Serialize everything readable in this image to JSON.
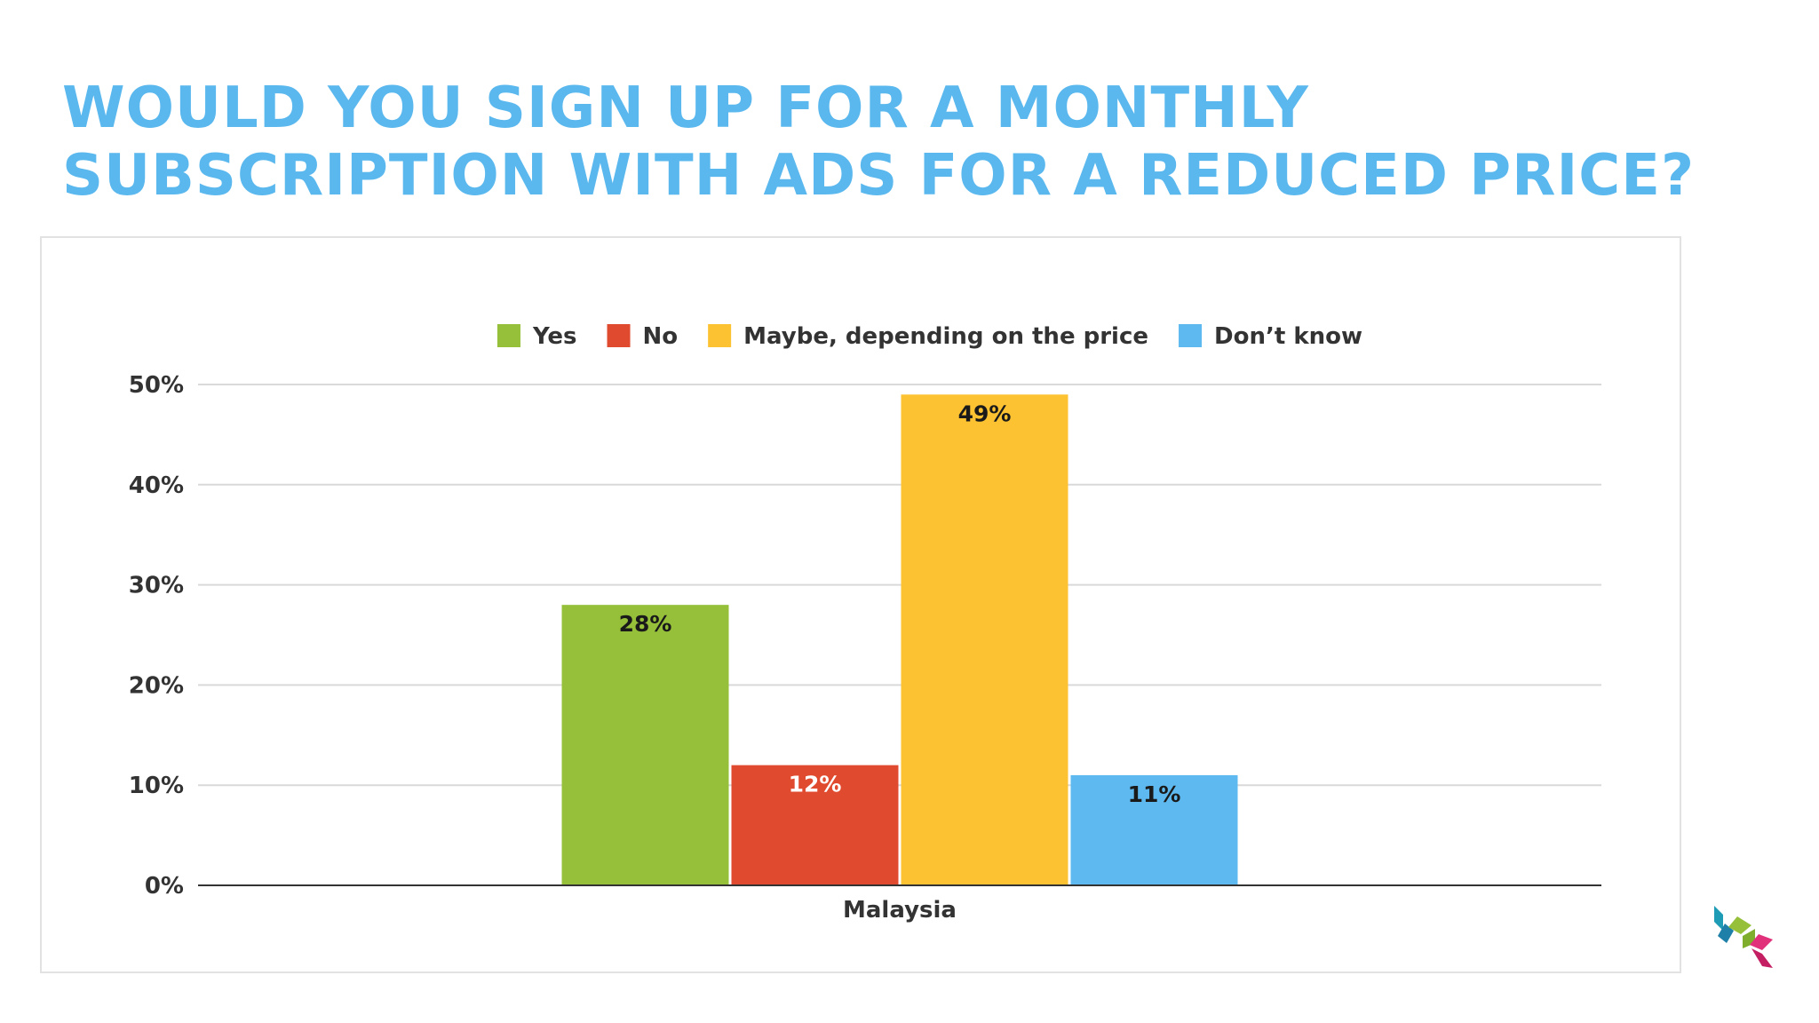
{
  "title_lines": [
    "WOULD YOU SIGN UP FOR A MONTHLY",
    "SUBSCRIPTION WITH ADS FOR A REDUCED PRICE?"
  ],
  "chart_data": {
    "type": "bar",
    "categories": [
      "Malaysia"
    ],
    "series": [
      {
        "name": "Yes",
        "values": [
          28
        ],
        "color": "#96c03a",
        "label": "28%"
      },
      {
        "name": "No",
        "values": [
          12
        ],
        "color": "#e04b30",
        "label": "12%"
      },
      {
        "name": "Maybe, depending on the price",
        "values": [
          49
        ],
        "color": "#fcc232",
        "label": "49%"
      },
      {
        "name": "Don’t know",
        "values": [
          11
        ],
        "color": "#5db9ef",
        "label": "11%"
      }
    ],
    "ylim": [
      0,
      50
    ],
    "yticks": [
      0,
      10,
      20,
      30,
      40,
      50
    ],
    "ytick_labels": [
      "0%",
      "10%",
      "20%",
      "30%",
      "40%",
      "50%"
    ],
    "ylabel": "",
    "xlabel": "",
    "legend": "top",
    "grid": true
  },
  "logo": {
    "icon": "brand-logo-icon",
    "colors": [
      "#1e9bb5",
      "#96c03a",
      "#e0317a"
    ]
  }
}
